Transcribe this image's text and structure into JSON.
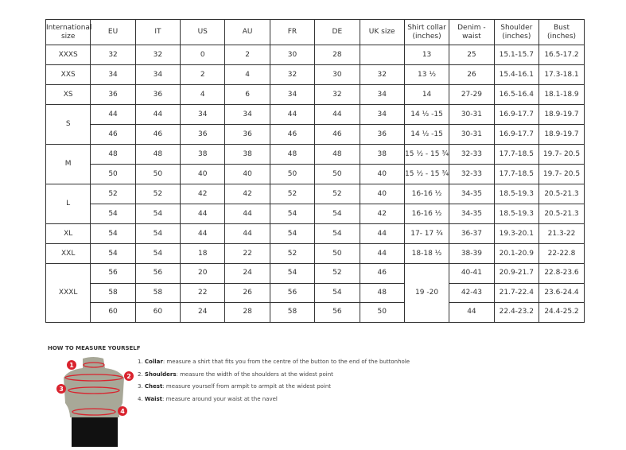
{
  "table": {
    "headers": [
      "International size",
      "EU",
      "IT",
      "US",
      "AU",
      "FR",
      "DE",
      "UK size",
      "Shirt collar (inches)",
      "Denim - waist",
      "Shoulder (inches)",
      "Bust (inches)"
    ],
    "groups": [
      {
        "size": "XXXS",
        "rows": [
          [
            "32",
            "32",
            "0",
            "2",
            "30",
            "28",
            "",
            "13",
            "25",
            "15.1-15.7",
            "16.5-17.2"
          ]
        ]
      },
      {
        "size": "XXS",
        "rows": [
          [
            "34",
            "34",
            "2",
            "4",
            "32",
            "30",
            "32",
            "13 ½",
            "26",
            "15.4-16.1",
            "17.3-18.1"
          ]
        ]
      },
      {
        "size": "XS",
        "rows": [
          [
            "36",
            "36",
            "4",
            "6",
            "34",
            "32",
            "34",
            "14",
            "27-29",
            "16.5-16.4",
            "18.1-18.9"
          ]
        ]
      },
      {
        "size": "S",
        "rows": [
          [
            "44",
            "44",
            "34",
            "34",
            "44",
            "44",
            "34",
            "14 ½ -15",
            "30-31",
            "16.9-17.7",
            "18.9-19.7"
          ],
          [
            "46",
            "46",
            "36",
            "36",
            "46",
            "46",
            "36",
            "14 ½ -15",
            "30-31",
            "16.9-17.7",
            "18.9-19.7"
          ]
        ]
      },
      {
        "size": "M",
        "rows": [
          [
            "48",
            "48",
            "38",
            "38",
            "48",
            "48",
            "38",
            "15 ½ - 15 ¾",
            "32-33",
            "17.7-18.5",
            "19.7- 20.5"
          ],
          [
            "50",
            "50",
            "40",
            "40",
            "50",
            "50",
            "40",
            "15 ½ - 15 ¾",
            "32-33",
            "17.7-18.5",
            "19.7- 20.5"
          ]
        ]
      },
      {
        "size": "L",
        "rows": [
          [
            "52",
            "52",
            "42",
            "42",
            "52",
            "52",
            "40",
            "16-16 ½",
            "34-35",
            "18.5-19.3",
            "20.5-21.3"
          ],
          [
            "54",
            "54",
            "44",
            "44",
            "54",
            "54",
            "42",
            "16-16 ½",
            "34-35",
            "18.5-19.3",
            "20.5-21.3"
          ]
        ]
      },
      {
        "size": "XL",
        "rows": [
          [
            "54",
            "54",
            "44",
            "44",
            "54",
            "54",
            "44",
            "17- 17 ¾",
            "36-37",
            "19.3-20.1",
            "21.3-22"
          ]
        ]
      },
      {
        "size": "XXL",
        "rows": [
          [
            "54",
            "54",
            "18",
            "22",
            "52",
            "50",
            "44",
            "18-18 ½",
            "38-39",
            "20.1-20.9",
            "22-22.8"
          ]
        ]
      },
      {
        "size": "XXXL",
        "collar": "19 -20",
        "rows": [
          [
            "56",
            "56",
            "20",
            "24",
            "54",
            "52",
            "46",
            "40-41",
            "20.9-21.7",
            "22.8-23.6"
          ],
          [
            "58",
            "58",
            "22",
            "26",
            "56",
            "54",
            "48",
            "42-43",
            "21.7-22.4",
            "23.6-24.4"
          ],
          [
            "60",
            "60",
            "24",
            "28",
            "58",
            "56",
            "50",
            "44",
            "22.4-23.2",
            "24.4-25.2"
          ]
        ]
      }
    ]
  },
  "howto": {
    "title": "HOW TO MEASURE YOURSELF",
    "steps": [
      {
        "n": "1.",
        "term": "Collar",
        "text": ": measure a shirt that fits you from the centre of the button to the end of the buttonhole"
      },
      {
        "n": "2.",
        "term": "Shoulders",
        "text": ": measure the width of the shoulders at the widest point"
      },
      {
        "n": "3.",
        "term": "Chest",
        "text": ": measure yourself from armpit to armpit at the widest point"
      },
      {
        "n": "4.",
        "term": "Waist",
        "text": ": measure around your waist at the navel"
      }
    ],
    "badges": [
      "1",
      "2",
      "3",
      "4"
    ],
    "colors": {
      "marker": "#d9232e",
      "torso": "#a8a898",
      "shorts": "#111111"
    }
  }
}
